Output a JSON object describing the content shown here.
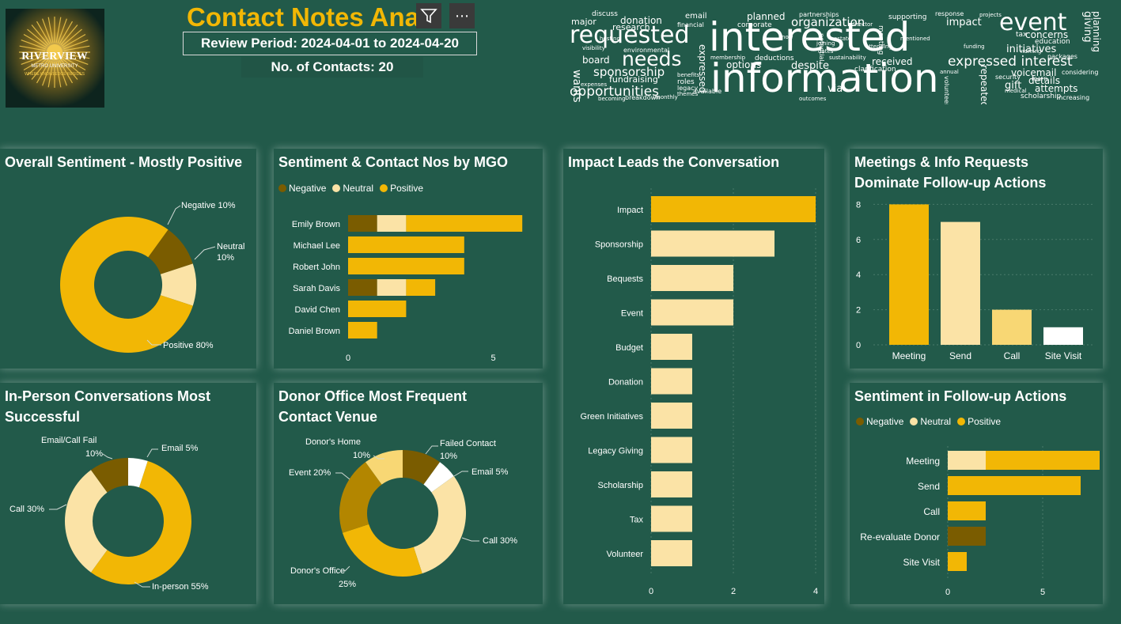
{
  "header": {
    "title": "Contact Notes Ana",
    "review_period": "Review Period: 2024-04-01 to 2024-04-20",
    "contacts": "No. of Contacts: 20",
    "logo_text": "RIVERVIEW",
    "logo_subtext": "METRO UNIVERSITY",
    "logo_tagline": "WHERE KNOWLEDGE RESIDES"
  },
  "toolbar": {
    "filter_icon": "filter-icon",
    "more_icon": "more-options-icon",
    "more_label": "⋯"
  },
  "colors": {
    "negative": "#7a5c00",
    "neutral": "#fbe3a6",
    "positive": "#f2b705",
    "background": "#225a4a",
    "light": "#f8d774",
    "white": "#ffffff"
  },
  "wordcloud": {
    "words": [
      "discuss",
      "major",
      "donation",
      "email",
      "available",
      "planned",
      "partnerships",
      "supporting",
      "response",
      "projects",
      "event",
      "giving",
      "planning",
      "interested",
      "requested",
      "research",
      "financial",
      "corporate",
      "organization",
      "impact",
      "concerns",
      "tax",
      "education",
      "wants",
      "needs",
      "board",
      "options",
      "deductions",
      "potential",
      "received",
      "initiatives",
      "packages",
      "information",
      "expressed interest",
      "sponsorship",
      "despite",
      "clarification",
      "voicemail",
      "considering",
      "fundraising",
      "roles",
      "security",
      "details",
      "opportunities",
      "via",
      "gift",
      "attempts",
      "scholarship",
      "increasing",
      "breakdown",
      "monthly",
      "becoming",
      "volunteering",
      "annual",
      "expenses",
      "know",
      "estate",
      "meeting",
      "director",
      "repeated",
      "expressed",
      "membership",
      "legacy",
      "themes",
      "benefits",
      "visibility",
      "environmental",
      "hosting",
      "mentioned",
      "dates",
      "sustainability",
      "attending",
      "funding",
      "medical",
      "naming",
      "learn",
      "outcomes",
      "joining"
    ]
  },
  "overall_sentiment": {
    "title": "Overall Sentiment - Mostly Positive",
    "chart_data": {
      "type": "pie",
      "categories": [
        "Negative",
        "Neutral",
        "Positive"
      ],
      "values": [
        10,
        10,
        80
      ],
      "labels": [
        "Negative 10%",
        "Neutral",
        "10%",
        "Positive 80%"
      ]
    }
  },
  "mgo_sentiment": {
    "title": "Sentiment & Contact Nos by MGO",
    "legend": [
      "Negative",
      "Neutral",
      "Positive"
    ],
    "chart_data": {
      "type": "bar",
      "orientation": "horizontal-stacked",
      "categories": [
        "Emily Brown",
        "Michael Lee",
        "Robert John",
        "Sarah Davis",
        "David Chen",
        "Daniel Brown"
      ],
      "series": [
        {
          "name": "Negative",
          "values": [
            1,
            0,
            0,
            1,
            0,
            0
          ]
        },
        {
          "name": "Neutral",
          "values": [
            1,
            0,
            0,
            1,
            0,
            0
          ]
        },
        {
          "name": "Positive",
          "values": [
            4,
            4,
            4,
            1,
            2,
            1
          ]
        }
      ],
      "xticks": [
        "0",
        "5"
      ],
      "xlim": [
        0,
        6
      ]
    }
  },
  "impact": {
    "title": "Impact Leads the Conversation",
    "chart_data": {
      "type": "bar",
      "orientation": "horizontal",
      "categories": [
        "Impact",
        "Sponsorship",
        "Bequests",
        "Event",
        "Budget",
        "Donation",
        "Green Initiatives",
        "Legacy Giving",
        "Scholarship",
        "Tax",
        "Volunteer"
      ],
      "values": [
        4,
        3,
        2,
        2,
        1,
        1,
        1,
        1,
        1,
        1,
        1
      ],
      "xticks": [
        "0",
        "2",
        "4"
      ],
      "xlim": [
        0,
        4
      ]
    }
  },
  "followup_actions": {
    "title_line1": "Meetings & Info Requests",
    "title_line2": "Dominate Follow-up Actions",
    "chart_data": {
      "type": "bar",
      "categories": [
        "Meeting",
        "Send",
        "Call",
        "Site Visit"
      ],
      "values": [
        8,
        7,
        2,
        1
      ],
      "yticks": [
        "0",
        "2",
        "4",
        "6",
        "8"
      ],
      "ylim": [
        0,
        8
      ]
    }
  },
  "inperson": {
    "title_line1": "In-Person Conversations Most",
    "title_line2": "Successful",
    "chart_data": {
      "type": "pie",
      "categories": [
        "In-person",
        "Call",
        "Email/Call Fail",
        "Email"
      ],
      "values": [
        55,
        30,
        10,
        5
      ],
      "labels": [
        "Email/Call Fail",
        "10%",
        "Email 5%",
        "Call 30%",
        "In-person 55%"
      ]
    }
  },
  "venue": {
    "title_line1": "Donor Office Most Frequent",
    "title_line2": "Contact Venue",
    "chart_data": {
      "type": "pie",
      "categories": [
        "Failed Contact",
        "Email",
        "Call",
        "Donor's Office",
        "Event",
        "Donor's Home"
      ],
      "values": [
        10,
        5,
        30,
        25,
        20,
        10
      ],
      "labels": [
        "Donor's Home",
        "10%",
        "Failed Contact",
        "10%",
        "Email 5%",
        "Event 20%",
        "Call 30%",
        "Donor's Office",
        "25%"
      ]
    }
  },
  "followup_sentiment": {
    "title": "Sentiment in Follow-up Actions",
    "legend": [
      "Negative",
      "Neutral",
      "Positive"
    ],
    "chart_data": {
      "type": "bar",
      "orientation": "horizontal-stacked",
      "categories": [
        "Meeting",
        "Send",
        "Call",
        "Re-evaluate Donor",
        "Site Visit"
      ],
      "series": [
        {
          "name": "Negative",
          "values": [
            0,
            0,
            0,
            2,
            0
          ]
        },
        {
          "name": "Neutral",
          "values": [
            2,
            0,
            0,
            0,
            0
          ]
        },
        {
          "name": "Positive",
          "values": [
            6,
            7,
            2,
            0,
            1
          ]
        }
      ],
      "xticks": [
        "0",
        "5"
      ],
      "xlim": [
        0,
        8
      ]
    }
  }
}
